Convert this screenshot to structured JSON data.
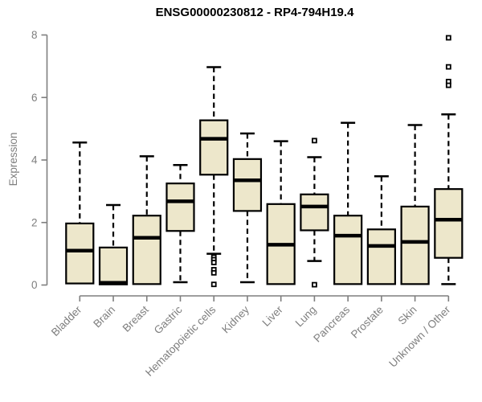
{
  "chart_data": {
    "type": "boxplot",
    "title": "ENSG00000230812 - RP4-794H19.4",
    "ylabel": "Expression",
    "xlabel": "",
    "ylim": [
      0,
      8
    ],
    "yticks": [
      0,
      2,
      4,
      6,
      8
    ],
    "grid": false,
    "legend": "none",
    "colors": {
      "box_fill": "#ede7cb",
      "box_stroke": "#000000",
      "median": "#000000",
      "whisker": "#000000",
      "outlier_stroke": "#000000",
      "outlier_fill": "#ffffff",
      "axis": "#7e7e7e",
      "tick_label": "#7e7e7e",
      "title": "#000000",
      "background": "#ffffff"
    },
    "categories": [
      "Bladder",
      "Brain",
      "Breast",
      "Gastric",
      "Hematopoietic cells",
      "Kidney",
      "Liver",
      "Lung",
      "Pancreas",
      "Prostate",
      "Skin",
      "Unknown / Other"
    ],
    "series": [
      {
        "category": "Bladder",
        "whisker_low": 0.05,
        "q1": 0.05,
        "median": 1.1,
        "q3": 1.97,
        "whisker_high": 4.56,
        "outliers": []
      },
      {
        "category": "Brain",
        "whisker_low": 0.02,
        "q1": 0.02,
        "median": 0.07,
        "q3": 1.2,
        "whisker_high": 2.56,
        "outliers": []
      },
      {
        "category": "Breast",
        "whisker_low": 0.03,
        "q1": 0.03,
        "median": 1.51,
        "q3": 2.22,
        "whisker_high": 4.12,
        "outliers": []
      },
      {
        "category": "Gastric",
        "whisker_low": 0.09,
        "q1": 1.73,
        "median": 2.68,
        "q3": 3.25,
        "whisker_high": 3.84,
        "outliers": []
      },
      {
        "category": "Hematopoietic cells",
        "whisker_low": 1.0,
        "q1": 3.53,
        "median": 4.68,
        "q3": 5.27,
        "whisker_high": 6.97,
        "outliers": [
          0.89,
          0.81,
          0.72,
          0.49,
          0.39,
          0.02
        ]
      },
      {
        "category": "Kidney",
        "whisker_low": 0.09,
        "q1": 2.37,
        "median": 3.35,
        "q3": 4.03,
        "whisker_high": 4.85,
        "outliers": []
      },
      {
        "category": "Liver",
        "whisker_low": 0.03,
        "q1": 0.03,
        "median": 1.29,
        "q3": 2.59,
        "whisker_high": 4.6,
        "outliers": []
      },
      {
        "category": "Lung",
        "whisker_low": 0.77,
        "q1": 1.75,
        "median": 2.51,
        "q3": 2.9,
        "whisker_high": 4.09,
        "outliers": [
          4.62,
          0.01
        ]
      },
      {
        "category": "Pancreas",
        "whisker_low": 0.03,
        "q1": 0.03,
        "median": 1.58,
        "q3": 2.22,
        "whisker_high": 5.19,
        "outliers": []
      },
      {
        "category": "Prostate",
        "whisker_low": 0.03,
        "q1": 0.03,
        "median": 1.25,
        "q3": 1.78,
        "whisker_high": 3.48,
        "outliers": []
      },
      {
        "category": "Skin",
        "whisker_low": 0.03,
        "q1": 0.03,
        "median": 1.38,
        "q3": 2.51,
        "whisker_high": 5.12,
        "outliers": []
      },
      {
        "category": "Unknown / Other",
        "whisker_low": 0.03,
        "q1": 0.87,
        "median": 2.09,
        "q3": 3.07,
        "whisker_high": 5.46,
        "outliers": [
          7.91,
          6.98,
          6.51,
          6.39
        ]
      }
    ]
  }
}
